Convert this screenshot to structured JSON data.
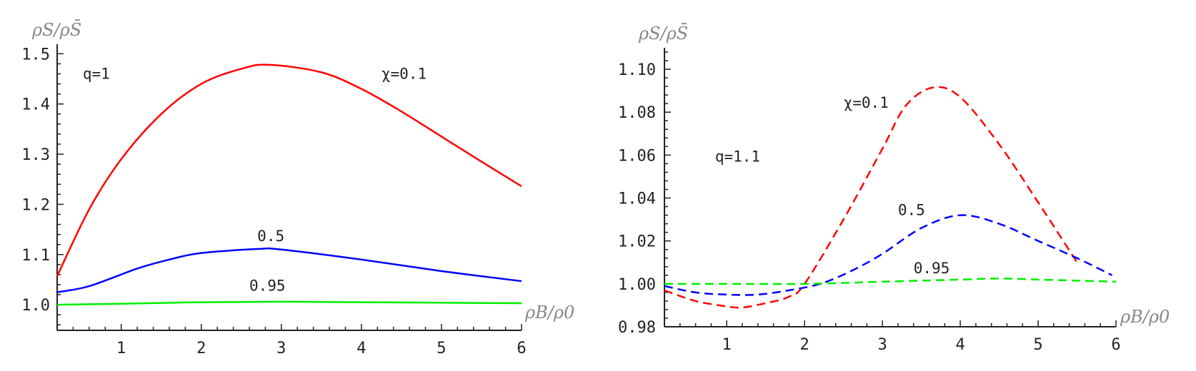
{
  "chart_data": [
    {
      "type": "line",
      "xlabel": "ρB/ρ0",
      "ylabel": "ρS/ρS̄",
      "xlim": [
        0.2,
        6
      ],
      "ylim": [
        0.949,
        1.519
      ],
      "xticks": [
        "1",
        "2",
        "3",
        "4",
        "5",
        "6"
      ],
      "yticks": [
        "1.0",
        "1.1",
        "1.2",
        "1.3",
        "1.4",
        "1.5"
      ],
      "line_style": "solid",
      "annotations": [
        {
          "text": "q=1",
          "x": 0.52,
          "y": 1.45
        },
        {
          "text": "χ=0.1",
          "x": 4.25,
          "y": 1.45
        },
        {
          "text": "0.5",
          "x": 2.7,
          "y": 1.127
        },
        {
          "text": "0.95",
          "x": 2.6,
          "y": 1.028
        }
      ],
      "series": [
        {
          "color": "#ff0000",
          "x": [
            0.2,
            0.6,
            1,
            1.5,
            2,
            2.5,
            2.85,
            3.5,
            4,
            4.5,
            5,
            5.5,
            6
          ],
          "y": [
            1.057,
            1.19,
            1.29,
            1.38,
            1.44,
            1.47,
            1.478,
            1.463,
            1.43,
            1.385,
            1.335,
            1.285,
            1.236
          ]
        },
        {
          "color": "#0000ff",
          "x": [
            0.2,
            0.6,
            1.2,
            1.6,
            2,
            2.7,
            3,
            4,
            5,
            6
          ],
          "y": [
            1.025,
            1.037,
            1.072,
            1.09,
            1.103,
            1.111,
            1.11,
            1.09,
            1.067,
            1.047
          ]
        },
        {
          "color": "#00ee00",
          "x": [
            0.2,
            1,
            2,
            3,
            4,
            5,
            6
          ],
          "y": [
            1.0,
            1.002,
            1.005,
            1.006,
            1.005,
            1.004,
            1.003
          ]
        }
      ]
    },
    {
      "type": "line",
      "xlabel": "ρB/ρ0",
      "ylabel": "ρS/ρS̄",
      "xlim": [
        0.2,
        6
      ],
      "ylim": [
        0.98,
        1.11
      ],
      "xticks": [
        "1",
        "2",
        "3",
        "4",
        "5",
        "6"
      ],
      "yticks": [
        "0.98",
        "1.00",
        "1.02",
        "1.04",
        "1.06",
        "1.08",
        "1.10"
      ],
      "line_style": "dashed",
      "annotations": [
        {
          "text": "χ=0.1",
          "x": 2.5,
          "y": 1.082
        },
        {
          "text": "q=1.1",
          "x": 0.85,
          "y": 1.057
        },
        {
          "text": "0.5",
          "x": 3.2,
          "y": 1.032
        },
        {
          "text": "0.95",
          "x": 3.4,
          "y": 1.005
        }
      ],
      "series": [
        {
          "color": "#ff0000",
          "x": [
            0.2,
            0.6,
            1,
            1.2,
            1.5,
            1.8,
            2,
            2.5,
            3,
            3.3,
            3.65,
            4,
            4.5,
            5,
            5.5
          ],
          "y": [
            0.997,
            0.992,
            0.9895,
            0.989,
            0.991,
            0.994,
            1.0,
            1.03,
            1.063,
            1.083,
            1.0915,
            1.087,
            1.065,
            1.038,
            1.01
          ]
        },
        {
          "color": "#0000ff",
          "x": [
            0.2,
            0.6,
            1,
            1.4,
            1.8,
            2.2,
            2.6,
            3,
            3.5,
            4,
            4.5,
            5,
            5.5,
            5.95
          ],
          "y": [
            0.999,
            0.996,
            0.995,
            0.995,
            0.997,
            1.0,
            1.006,
            1.014,
            1.026,
            1.032,
            1.028,
            1.02,
            1.012,
            1.004
          ]
        },
        {
          "color": "#00ee00",
          "x": [
            0.2,
            1,
            2,
            3,
            4,
            4.5,
            5,
            6
          ],
          "y": [
            1.0,
            1.0,
            1.0,
            1.001,
            1.002,
            1.0025,
            1.002,
            1.001
          ]
        }
      ]
    }
  ]
}
